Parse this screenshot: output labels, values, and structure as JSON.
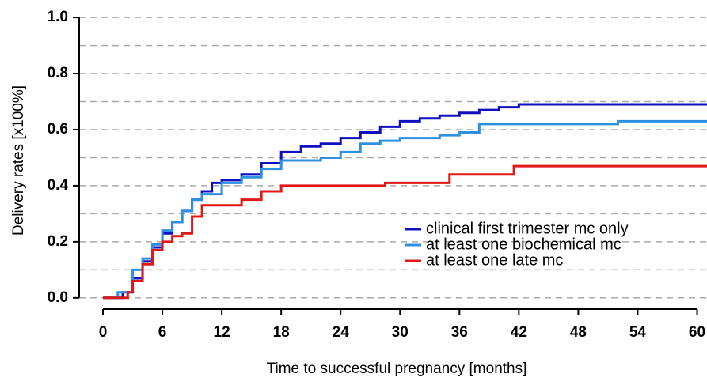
{
  "chart_data": {
    "type": "step",
    "xlabel": "Time to successful pregnancy [months]",
    "ylabel": "Delivery rates [x100%]",
    "xlim": [
      -2.4,
      61
    ],
    "ylim": [
      -0.04,
      1.02
    ],
    "xticks": [
      0,
      6,
      12,
      18,
      24,
      30,
      36,
      42,
      48,
      54,
      60
    ],
    "yticks": [
      {
        "value": 0,
        "label": "0.0"
      },
      {
        "value": 0.2,
        "label": "0.2"
      },
      {
        "value": 0.4,
        "label": "0.4"
      },
      {
        "value": 0.6,
        "label": "0.6"
      },
      {
        "value": 0.8,
        "label": "0.8"
      },
      {
        "value": 1,
        "label": "1.0"
      }
    ],
    "ygrid": [
      0,
      0.1,
      0.2,
      0.3,
      0.4,
      0.5,
      0.6,
      0.7,
      0.8,
      0.9,
      1
    ],
    "grid": true,
    "legend": "lower right",
    "series": [
      {
        "name": "clinical first trimester mc only",
        "color": "#1010c0",
        "x": [
          0,
          1.5,
          2,
          3,
          4,
          5,
          6,
          7,
          8,
          9,
          10,
          11,
          12,
          14,
          16,
          18,
          20,
          22,
          24,
          26,
          28,
          30,
          32,
          34,
          36,
          38,
          40,
          42,
          61
        ],
        "y": [
          0,
          0,
          0.02,
          0.07,
          0.13,
          0.18,
          0.23,
          0.27,
          0.31,
          0.35,
          0.38,
          0.41,
          0.42,
          0.44,
          0.48,
          0.52,
          0.54,
          0.55,
          0.57,
          0.59,
          0.61,
          0.63,
          0.64,
          0.65,
          0.66,
          0.67,
          0.68,
          0.69,
          0.69
        ]
      },
      {
        "name": "at least one biochemical mc",
        "color": "#2e90e0",
        "x": [
          0,
          1,
          1.5,
          3,
          4,
          5,
          6,
          7,
          8,
          9,
          10,
          12,
          14,
          16,
          18,
          22,
          24,
          26,
          28,
          30,
          34,
          36,
          38,
          52,
          61
        ],
        "y": [
          0,
          0,
          0.02,
          0.1,
          0.14,
          0.19,
          0.24,
          0.27,
          0.31,
          0.35,
          0.37,
          0.41,
          0.43,
          0.46,
          0.49,
          0.5,
          0.52,
          0.55,
          0.56,
          0.57,
          0.58,
          0.59,
          0.62,
          0.63,
          0.63
        ]
      },
      {
        "name": "at least one late mc",
        "color": "#e01818",
        "x": [
          0,
          2,
          2.5,
          3,
          4,
          5,
          6,
          7,
          8,
          9,
          10,
          14,
          16,
          18,
          28.5,
          35,
          41.5,
          61
        ],
        "y": [
          0,
          0,
          0.02,
          0.06,
          0.12,
          0.17,
          0.2,
          0.22,
          0.23,
          0.29,
          0.33,
          0.35,
          0.38,
          0.4,
          0.41,
          0.44,
          0.47,
          0.47
        ]
      }
    ]
  }
}
